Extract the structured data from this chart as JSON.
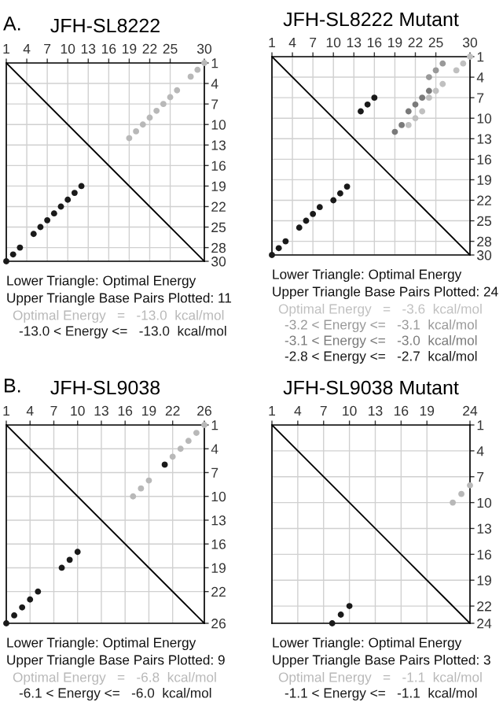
{
  "chart_data": [
    {
      "type": "scatter",
      "title": "JFH-SL8222",
      "xlim": [
        1,
        30
      ],
      "ylim": [
        30,
        1
      ],
      "xticks": [
        1,
        4,
        7,
        10,
        13,
        16,
        19,
        22,
        25,
        30
      ],
      "yticks": [
        1,
        4,
        7,
        10,
        13,
        16,
        19,
        22,
        25,
        28,
        30
      ],
      "grid": true,
      "marker": "circle",
      "annotations": [
        "A.",
        "Lower Triangle: Optimal Energy",
        "Upper Triangle Base Pairs Plotted: 11"
      ],
      "series": [
        {
          "type": "line",
          "marker": "none",
          "color": "#000000",
          "x": [
            1,
            30
          ],
          "values": [
            1,
            30
          ]
        },
        {
          "name": "Optimal Energy   =   -13.0  kcal/mol",
          "color": "#b8b8b8",
          "x": [
            30,
            29,
            28,
            26,
            25,
            24,
            23,
            22,
            21,
            20,
            19
          ],
          "values": [
            1,
            2,
            3,
            5,
            6,
            7,
            8,
            9,
            10,
            11,
            12
          ]
        },
        {
          "name": "-13.0 < Energy <=   -13.0  kcal/mol",
          "color": "#1a1a1a",
          "x": [
            1,
            2,
            3,
            5,
            6,
            7,
            8,
            9,
            10,
            11,
            12
          ],
          "values": [
            30,
            29,
            28,
            26,
            25,
            24,
            23,
            22,
            21,
            20,
            19
          ]
        }
      ]
    },
    {
      "type": "scatter",
      "title": "JFH-SL8222 Mutant",
      "xlim": [
        1,
        30
      ],
      "ylim": [
        30,
        1
      ],
      "xticks": [
        1,
        4,
        7,
        10,
        13,
        16,
        19,
        22,
        25,
        30
      ],
      "yticks": [
        1,
        4,
        7,
        10,
        13,
        16,
        19,
        22,
        25,
        28,
        30
      ],
      "grid": true,
      "marker": "circle",
      "annotations": [
        "Lower Triangle: Optimal Energy",
        "Upper Triangle Base Pairs Plotted: 24"
      ],
      "series": [
        {
          "type": "line",
          "marker": "none",
          "color": "#000000",
          "x": [
            1,
            30
          ],
          "values": [
            1,
            30
          ]
        },
        {
          "name": "Optimal Energy   =   -3.6  kcal/mol",
          "color": "#c0c0c0",
          "x": [
            30,
            29,
            28,
            26,
            25,
            24,
            23,
            22,
            21
          ],
          "values": [
            1,
            2,
            3,
            5,
            6,
            7,
            9,
            10,
            11
          ]
        },
        {
          "name": "-3.2 < Energy <=   -3.1  kcal/mol",
          "color": "#999999",
          "x": [
            26,
            25,
            24
          ],
          "values": [
            2,
            3,
            4
          ]
        },
        {
          "name": "-3.1 < Energy <=   -3.0  kcal/mol",
          "color": "#7a7a7a",
          "x": [
            24,
            23,
            22,
            21,
            20,
            19
          ],
          "values": [
            6,
            7,
            8,
            9,
            11,
            12
          ]
        },
        {
          "name": "-2.8 < Energy <=   -2.7  kcal/mol",
          "color": "#1a1a1a",
          "x": [
            1,
            2,
            3,
            5,
            6,
            7,
            8,
            10,
            11,
            12,
            14,
            15,
            16
          ],
          "values": [
            30,
            29,
            28,
            26,
            25,
            24,
            23,
            22,
            21,
            20,
            9,
            8,
            7
          ]
        }
      ]
    },
    {
      "type": "scatter",
      "title": "JFH-SL9038",
      "xlim": [
        1,
        26
      ],
      "ylim": [
        26,
        1
      ],
      "xticks": [
        1,
        4,
        7,
        10,
        13,
        16,
        19,
        22,
        26
      ],
      "yticks": [
        1,
        4,
        7,
        10,
        13,
        16,
        19,
        22,
        26
      ],
      "grid": true,
      "marker": "circle",
      "annotations": [
        "B.",
        "Lower Triangle: Optimal Energy",
        "Upper Triangle Base Pairs Plotted: 9"
      ],
      "series": [
        {
          "type": "line",
          "marker": "none",
          "color": "#000000",
          "x": [
            1,
            26
          ],
          "values": [
            1,
            26
          ]
        },
        {
          "name": "Optimal Energy   =   -6.8  kcal/mol",
          "color": "#b8b8b8",
          "x": [
            26,
            25,
            24,
            23,
            22,
            19,
            18,
            17
          ],
          "values": [
            1,
            2,
            3,
            4,
            5,
            8,
            9,
            10
          ]
        },
        {
          "name": "-6.1 < Energy <=   -6.0  kcal/mol",
          "color": "#1a1a1a",
          "x": [
            1,
            2,
            3,
            4,
            5,
            8,
            9,
            10,
            21
          ],
          "values": [
            26,
            25,
            24,
            23,
            22,
            19,
            18,
            17,
            6
          ]
        }
      ]
    },
    {
      "type": "scatter",
      "title": "JFH-SL9038 Mutant",
      "xlim": [
        1,
        24
      ],
      "ylim": [
        24,
        1
      ],
      "xticks": [
        1,
        4,
        7,
        10,
        13,
        16,
        19,
        24
      ],
      "yticks": [
        1,
        4,
        7,
        10,
        13,
        16,
        19,
        22,
        24
      ],
      "grid": true,
      "marker": "circle",
      "annotations": [
        "Lower Triangle: Optimal Energy",
        "Upper Triangle Base Pairs Plotted: 3"
      ],
      "series": [
        {
          "type": "line",
          "marker": "none",
          "color": "#000000",
          "x": [
            1,
            24
          ],
          "values": [
            1,
            24
          ]
        },
        {
          "name": "Optimal Energy   =   -1.1  kcal/mol",
          "color": "#b8b8b8",
          "x": [
            24,
            23,
            22
          ],
          "values": [
            8,
            9,
            10
          ]
        },
        {
          "name": "-1.1 < Energy <=   -1.1  kcal/mol",
          "color": "#1a1a1a",
          "x": [
            8,
            9,
            10
          ],
          "values": [
            24,
            23,
            22
          ]
        }
      ]
    }
  ]
}
